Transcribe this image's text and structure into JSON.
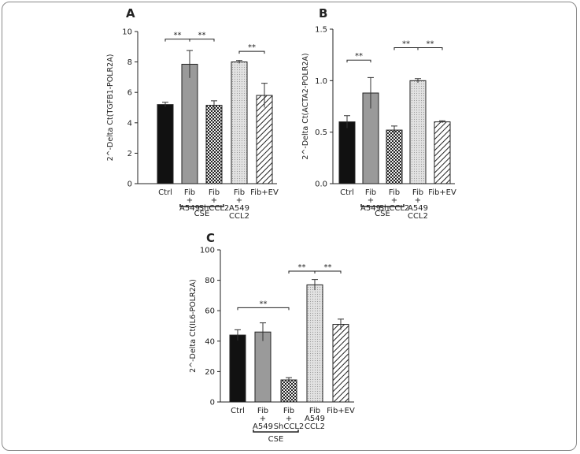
{
  "chart_data": [
    {
      "type": "bar",
      "panel": "A",
      "ylabel": "2^-Delta Ct(TGFB1-POLR2A)",
      "categories": [
        [
          "Ctrl"
        ],
        [
          "Fib",
          "+",
          "A549"
        ],
        [
          "Fib",
          "+",
          "ShCCL2"
        ],
        [
          "Fib",
          "+",
          "A549",
          "CCL2"
        ],
        [
          "Fib+EV"
        ]
      ],
      "values": [
        5.2,
        7.85,
        5.15,
        8.0,
        5.8
      ],
      "errors": [
        0.15,
        0.9,
        0.3,
        0.1,
        0.8
      ],
      "colors": [
        "#111111",
        "#9a9a9a",
        "#3a3a3a",
        "#d4d4d4",
        "#ffffff"
      ],
      "bar_styles": [
        "solid",
        "solid",
        "checker",
        "dots",
        "hatch"
      ],
      "ylim": [
        0,
        10
      ],
      "yticks": [
        0,
        2,
        4,
        6,
        8,
        10
      ],
      "annotations": [
        {
          "from": 0,
          "to": 1,
          "y": 9.5,
          "label": "**"
        },
        {
          "from": 1,
          "to": 2,
          "y": 9.5,
          "label": "**"
        },
        {
          "from": 3,
          "to": 4,
          "y": 8.7,
          "label": "**"
        }
      ],
      "group": {
        "label": "CSE",
        "from": 1,
        "to": 2
      }
    },
    {
      "type": "bar",
      "panel": "B",
      "ylabel": "2^-Delta Ct(ACTA2-POLR2A)",
      "categories": [
        [
          "Ctrl"
        ],
        [
          "Fib",
          "+",
          "A549"
        ],
        [
          "Fib",
          "+",
          "ShCCL2"
        ],
        [
          "Fib",
          "+",
          "A549",
          "CCL2"
        ],
        [
          "Fib+EV"
        ]
      ],
      "values": [
        0.6,
        0.88,
        0.52,
        1.0,
        0.6
      ],
      "errors": [
        0.06,
        0.15,
        0.04,
        0.02,
        0.01
      ],
      "colors": [
        "#111111",
        "#9a9a9a",
        "#3a3a3a",
        "#d4d4d4",
        "#ffffff"
      ],
      "bar_styles": [
        "solid",
        "solid",
        "checker",
        "dots",
        "hatch"
      ],
      "ylim": [
        0,
        1.5
      ],
      "yticks": [
        {
          "value": 0,
          "label": "0.0"
        },
        0.5,
        {
          "value": 1,
          "label": "1.0"
        },
        1.5
      ],
      "annotations": [
        {
          "from": 0,
          "to": 1,
          "y": 1.2,
          "label": "**"
        },
        {
          "from": 2,
          "to": 3,
          "y": 1.32,
          "label": "**"
        },
        {
          "from": 3,
          "to": 4,
          "y": 1.32,
          "label": "**"
        }
      ],
      "group": {
        "label": "CSE",
        "from": 1,
        "to": 2
      }
    },
    {
      "type": "bar",
      "panel": "C",
      "ylabel": "2^-Delta Ct(IL6-POLR2A)",
      "categories": [
        [
          "Ctrl"
        ],
        [
          "Fib",
          "+",
          "A549"
        ],
        [
          "Fib",
          "+",
          "ShCCL2"
        ],
        [
          "Fib",
          "A549",
          "CCL2"
        ],
        [
          "Fib+EV"
        ]
      ],
      "values": [
        44,
        46,
        14.5,
        77,
        51
      ],
      "errors": [
        3.5,
        6,
        1.5,
        3.5,
        3.5
      ],
      "colors": [
        "#111111",
        "#9a9a9a",
        "#3a3a3a",
        "#d4d4d4",
        "#ffffff"
      ],
      "bar_styles": [
        "solid",
        "solid",
        "checker",
        "dots",
        "hatch"
      ],
      "ylim": [
        0,
        100
      ],
      "yticks": [
        0,
        20,
        40,
        60,
        80,
        100
      ],
      "annotations": [
        {
          "from": 0,
          "to": 2,
          "y": 62,
          "label": "**"
        },
        {
          "from": 2,
          "to": 3,
          "y": 86,
          "label": "**"
        },
        {
          "from": 3,
          "to": 4,
          "y": 86,
          "label": "**"
        }
      ],
      "group": {
        "label": "CSE",
        "from": 1,
        "to": 2
      }
    }
  ]
}
